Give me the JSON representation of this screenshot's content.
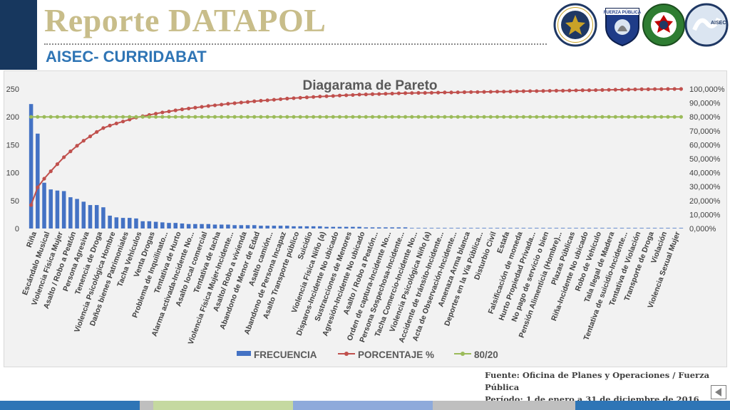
{
  "header": {
    "title": "Reporte DATAPOL",
    "subtitle": "AISEC- CURRIDABAT",
    "logos": [
      {
        "name": "us-embassy-seal",
        "text": "UNITED STATES OF AMERICA EMBASSY"
      },
      {
        "name": "fuerza-publica-badge",
        "text": "FUERZA PÚBLICA"
      },
      {
        "name": "police-emblem",
        "text": "DIOS Y PATRIA"
      },
      {
        "name": "aisec-logo",
        "text": "AISEC"
      }
    ]
  },
  "footer": {
    "source": "Fuente: Oficina de Planes y Operaciones / Fuerza Pública",
    "period": "Período: 1 de enero a 31 de diciembre de 2016",
    "bar_colors": [
      "#2e75b6",
      "#bfbfbf",
      "#c5d9a0",
      "#8eaadb",
      "#bfbfbf",
      "#2e75b6"
    ]
  },
  "chart_data": {
    "type": "bar",
    "title": "Diagarama de Pareto",
    "xlabel": "",
    "ylabel": "",
    "ylim": [
      0,
      250
    ],
    "y2lim": [
      0,
      100
    ],
    "yticks": [
      "0",
      "50",
      "100",
      "150",
      "200",
      "250"
    ],
    "y2ticks": [
      "0,000%",
      "10,000%",
      "20,000%",
      "30,000%",
      "40,000%",
      "50,000%",
      "60,000%",
      "70,000%",
      "80,000%",
      "90,000%",
      "100,000%"
    ],
    "grid": false,
    "legend_position": "bottom",
    "x_tick_labels": [
      "Riña",
      "Escándalo Musical",
      "Violencia Física Mujer",
      "Asalto / Robo a Peatón",
      "Persona Agresiva",
      "Tenencia de Droga",
      "Violencia Psicológica Hombre",
      "Daños bienes Patrimoniales",
      "Tacha Vehículos",
      "Venta Drogas",
      "Problema de Inquilinato...",
      "Tentativa de Hurto",
      "Alarma activada-Incidente No...",
      "Asalto local comercial",
      "Tentativa de tacha",
      "Violencia Física Mujer-Incidente...",
      "Asalto/ Robo a vivienda",
      "Abandono de Menor de Edad",
      "Asalto camión...",
      "Abandono de Persona Incapaz",
      "Asalto Transporte público",
      "Suicidio",
      "Violencia Física Niño (a)",
      "Disparos-Incidente No ubicado",
      "Sustracciones de Menores",
      "Agresión-Incidente No ubicado",
      "Asalto / Robo a Peatón...",
      "Orden de captura-Incidente No...",
      "Persona Sospechosa-Incidente...",
      "Tacha Comercio-Incidente No...",
      "Violencia Psicológica Niño (a)",
      "Accidente de tránsito-Incidente...",
      "Acta de Observación-Incidente...",
      "Amenaza Arma blanca",
      "Deportes en la Vía Pública...",
      "Disturbio Civil",
      "Estafa",
      "Falsificación de moneda",
      "Hurto Propiedad Privada...",
      "No pago de servicio o bien",
      "Pensión Alimenticia (Hombre)...",
      "Plazas Públicas",
      "Riña-Incidente No ubicado",
      "Robo de Vehículo",
      "Tala Ilegal de Madera",
      "Tentativa de suicidio-Incidente...",
      "Tentativa de Violación",
      "Transporte de Droga",
      "Violación",
      "Violencia Sexual Mujer"
    ],
    "series": [
      {
        "name": "FRECUENCIA",
        "type": "bar",
        "color": "#4472c4",
        "values": [
          223,
          170,
          82,
          70,
          68,
          67,
          56,
          53,
          48,
          42,
          42,
          38,
          23,
          20,
          19,
          19,
          18,
          13,
          13,
          12,
          11,
          10,
          10,
          9,
          8,
          8,
          8,
          8,
          7,
          7,
          7,
          6,
          6,
          6,
          6,
          5,
          5,
          5,
          5,
          5,
          4,
          4,
          4,
          4,
          4,
          3,
          3,
          3,
          3,
          3,
          3,
          2,
          2,
          2,
          2,
          2,
          2,
          2,
          1,
          1,
          1,
          1,
          1,
          1,
          1,
          1,
          1,
          1,
          1,
          1,
          1,
          1,
          1,
          1,
          1,
          1,
          1,
          1,
          1,
          1,
          1,
          1,
          1,
          1,
          1,
          1,
          1,
          1,
          1,
          1,
          1,
          1,
          1,
          1,
          1,
          1,
          1,
          1,
          1,
          1
        ]
      },
      {
        "name": "PORCENTAJE %",
        "type": "line",
        "axis": "right",
        "color": "#c0504d",
        "values": [
          16.8,
          29.5,
          35.7,
          41.0,
          46.1,
          51.1,
          55.3,
          59.3,
          62.9,
          66.0,
          69.2,
          72.0,
          73.8,
          75.3,
          76.7,
          78.1,
          79.5,
          80.5,
          81.4,
          82.3,
          83.2,
          83.9,
          84.7,
          85.4,
          86.0,
          86.6,
          87.2,
          87.8,
          88.3,
          88.8,
          89.4,
          89.8,
          90.3,
          90.7,
          91.2,
          91.6,
          91.9,
          92.3,
          92.7,
          93.1,
          93.4,
          93.7,
          94.0,
          94.3,
          94.6,
          94.8,
          95.0,
          95.3,
          95.5,
          95.7,
          96.0,
          96.1,
          96.3,
          96.4,
          96.6,
          96.7,
          96.9,
          97.0,
          97.1,
          97.2,
          97.2,
          97.3,
          97.4,
          97.5,
          97.5,
          97.6,
          97.7,
          97.8,
          97.8,
          97.9,
          98.0,
          98.1,
          98.1,
          98.2,
          98.3,
          98.4,
          98.5,
          98.5,
          98.6,
          98.7,
          98.8,
          98.8,
          98.9,
          99.0,
          99.1,
          99.1,
          99.2,
          99.3,
          99.4,
          99.5,
          99.5,
          99.6,
          99.7,
          99.8,
          99.8,
          99.9,
          99.9,
          100.0,
          100.0,
          100.0
        ]
      },
      {
        "name": "80/20",
        "type": "line",
        "axis": "right",
        "color": "#9bbb59",
        "values": [
          80,
          80,
          80,
          80,
          80,
          80,
          80,
          80,
          80,
          80,
          80,
          80,
          80,
          80,
          80,
          80,
          80,
          80,
          80,
          80,
          80,
          80,
          80,
          80,
          80,
          80,
          80,
          80,
          80,
          80,
          80,
          80,
          80,
          80,
          80,
          80,
          80,
          80,
          80,
          80,
          80,
          80,
          80,
          80,
          80,
          80,
          80,
          80,
          80,
          80,
          80,
          80,
          80,
          80,
          80,
          80,
          80,
          80,
          80,
          80,
          80,
          80,
          80,
          80,
          80,
          80,
          80,
          80,
          80,
          80,
          80,
          80,
          80,
          80,
          80,
          80,
          80,
          80,
          80,
          80,
          80,
          80,
          80,
          80,
          80,
          80,
          80,
          80,
          80,
          80,
          80,
          80,
          80,
          80,
          80,
          80,
          80,
          80,
          80,
          80
        ]
      }
    ]
  }
}
